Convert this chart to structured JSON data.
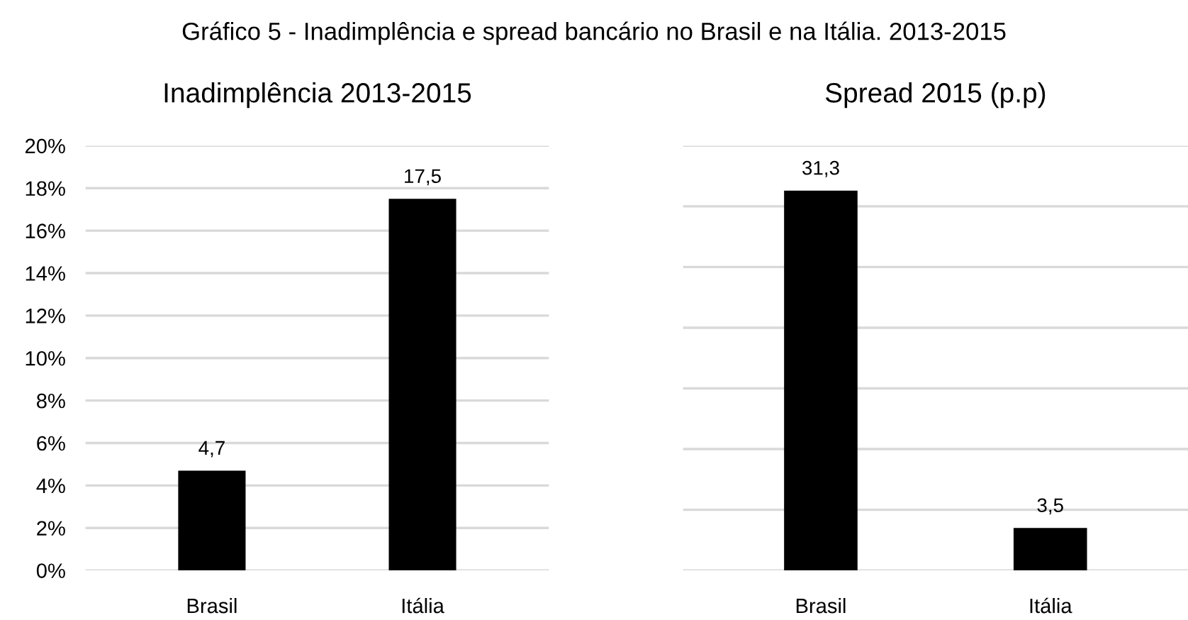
{
  "chart_data": [
    {
      "type": "bar",
      "title": "Inadimplência 2013-2015",
      "annotations": [
        "Gráfico 5 - Inadimplência e spread bancário no Brasil e na Itália. 2013-2015"
      ],
      "categories": [
        "Brasil",
        "Itália"
      ],
      "values": [
        4.7,
        17.5
      ],
      "color": "#000000",
      "value_labels": [
        "4,7",
        "17,5"
      ],
      "ylim": [
        0,
        20
      ],
      "yticks": [
        {
          "value": 0,
          "label": "0%"
        },
        {
          "value": 2,
          "label": "2%"
        },
        {
          "value": 4,
          "label": "4%"
        },
        {
          "value": 6,
          "label": "6%"
        },
        {
          "value": 8,
          "label": "8%"
        },
        {
          "value": 10,
          "label": "10%"
        },
        {
          "value": 12,
          "label": "12%"
        },
        {
          "value": 14,
          "label": "14%"
        },
        {
          "value": 16,
          "label": "16%"
        },
        {
          "value": 18,
          "label": "18%"
        },
        {
          "value": 20,
          "label": "20%"
        }
      ],
      "grid": "y"
    },
    {
      "type": "bar",
      "title": "Spread 2015 (p.p)",
      "categories": [
        "Brasil",
        "Itália"
      ],
      "values": [
        31.3,
        3.5
      ],
      "color": "#000000",
      "value_labels": [
        "31,3",
        "3,5"
      ],
      "ylim": [
        0,
        35
      ],
      "yticks": [
        {
          "value": 0,
          "label": null
        },
        {
          "value": 5,
          "label": null
        },
        {
          "value": 10,
          "label": null
        },
        {
          "value": 15,
          "label": null
        },
        {
          "value": 20,
          "label": null
        },
        {
          "value": 25,
          "label": null
        },
        {
          "value": 30,
          "label": null
        },
        {
          "value": 35,
          "label": null
        }
      ],
      "grid": "y",
      "tick_labels": "x"
    }
  ]
}
